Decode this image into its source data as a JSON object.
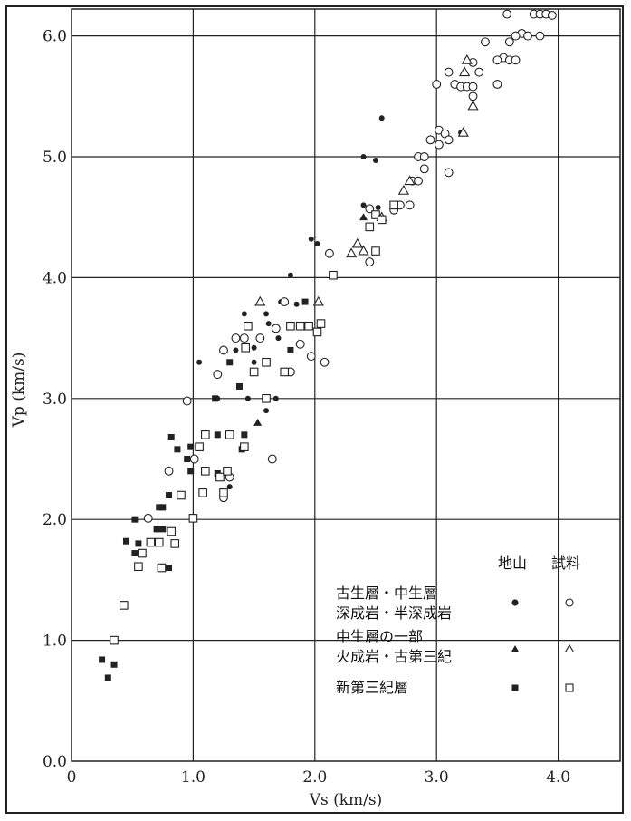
{
  "chart_data": {
    "type": "scatter",
    "xlabel": "Vs (km/s)",
    "ylabel": "Vp (km/s)",
    "xlim": [
      0,
      4.5
    ],
    "ylim": [
      0,
      6.25
    ],
    "x_ticks": [
      "0",
      "1.0",
      "2.0",
      "3.0",
      "4.0"
    ],
    "y_ticks": [
      "0.0",
      "1.0",
      "2.0",
      "3.0",
      "4.0",
      "5.0",
      "6.0"
    ],
    "grid": true,
    "legend": {
      "placement": "bottom-right",
      "col_headers": [
        "地山",
        "試料"
      ],
      "groups": [
        {
          "label_lines": [
            "古生層・中生層",
            "深成岩・半深成岩"
          ],
          "marker": "circle"
        },
        {
          "label_lines": [
            "中生層の一部",
            "火成岩・古第三紀"
          ],
          "marker": "triangle"
        },
        {
          "label_lines": [
            "新第三紀層"
          ],
          "marker": "square"
        }
      ]
    },
    "series": [
      {
        "marker": "circle",
        "fill": "filled",
        "points": [
          [
            2.55,
            5.32
          ],
          [
            2.4,
            5.0
          ],
          [
            2.5,
            4.97
          ],
          [
            2.4,
            4.6
          ],
          [
            2.52,
            4.58
          ],
          [
            1.97,
            4.32
          ],
          [
            2.02,
            4.28
          ],
          [
            1.8,
            4.02
          ],
          [
            1.42,
            3.7
          ],
          [
            1.6,
            3.7
          ],
          [
            1.72,
            3.8
          ],
          [
            1.85,
            3.78
          ],
          [
            1.62,
            3.62
          ],
          [
            1.05,
            3.3
          ],
          [
            1.35,
            3.4
          ],
          [
            1.5,
            3.42
          ],
          [
            1.7,
            3.5
          ],
          [
            1.8,
            3.4
          ],
          [
            1.5,
            3.3
          ],
          [
            1.2,
            3.0
          ],
          [
            1.45,
            3.0
          ],
          [
            1.68,
            3.0
          ],
          [
            1.6,
            2.9
          ],
          [
            1.3,
            2.27
          ],
          [
            3.07,
            5.2
          ],
          [
            3.2,
            5.2
          ]
        ]
      },
      {
        "marker": "circle",
        "fill": "open",
        "points": [
          [
            3.58,
            6.18
          ],
          [
            3.8,
            6.18
          ],
          [
            3.85,
            6.18
          ],
          [
            3.9,
            6.18
          ],
          [
            3.95,
            6.17
          ],
          [
            3.7,
            6.02
          ],
          [
            3.75,
            6.0
          ],
          [
            3.85,
            6.0
          ],
          [
            3.65,
            6.0
          ],
          [
            3.6,
            5.95
          ],
          [
            3.4,
            5.95
          ],
          [
            3.55,
            5.82
          ],
          [
            3.5,
            5.8
          ],
          [
            3.6,
            5.8
          ],
          [
            3.65,
            5.8
          ],
          [
            3.3,
            5.78
          ],
          [
            3.1,
            5.7
          ],
          [
            3.35,
            5.7
          ],
          [
            3.0,
            5.6
          ],
          [
            3.15,
            5.6
          ],
          [
            3.2,
            5.58
          ],
          [
            3.25,
            5.58
          ],
          [
            3.3,
            5.58
          ],
          [
            3.5,
            5.6
          ],
          [
            3.3,
            5.5
          ],
          [
            3.02,
            5.22
          ],
          [
            3.07,
            5.19
          ],
          [
            3.1,
            5.14
          ],
          [
            2.95,
            5.14
          ],
          [
            3.02,
            5.1
          ],
          [
            3.1,
            4.87
          ],
          [
            2.85,
            5.0
          ],
          [
            2.9,
            5.0
          ],
          [
            2.9,
            4.9
          ],
          [
            2.8,
            4.8
          ],
          [
            2.85,
            4.8
          ],
          [
            2.7,
            4.6
          ],
          [
            2.78,
            4.6
          ],
          [
            2.65,
            4.56
          ],
          [
            2.45,
            4.57
          ],
          [
            2.45,
            4.13
          ],
          [
            2.12,
            4.2
          ],
          [
            1.75,
            3.8
          ],
          [
            1.68,
            3.58
          ],
          [
            1.35,
            3.5
          ],
          [
            1.42,
            3.5
          ],
          [
            1.55,
            3.5
          ],
          [
            1.25,
            3.4
          ],
          [
            1.88,
            3.45
          ],
          [
            1.97,
            3.35
          ],
          [
            2.08,
            3.3
          ],
          [
            1.8,
            3.22
          ],
          [
            1.2,
            3.2
          ],
          [
            0.95,
            2.98
          ],
          [
            1.01,
            2.5
          ],
          [
            1.65,
            2.5
          ],
          [
            0.8,
            2.4
          ],
          [
            1.3,
            2.35
          ],
          [
            1.25,
            2.18
          ],
          [
            0.63,
            2.01
          ]
        ]
      },
      {
        "marker": "triangle",
        "fill": "filled",
        "points": [
          [
            2.4,
            4.5
          ],
          [
            1.53,
            2.8
          ]
        ]
      },
      {
        "marker": "triangle",
        "fill": "open",
        "points": [
          [
            3.25,
            5.8
          ],
          [
            3.23,
            5.7
          ],
          [
            3.22,
            5.2
          ],
          [
            3.3,
            5.42
          ],
          [
            2.78,
            4.8
          ],
          [
            2.73,
            4.72
          ],
          [
            2.35,
            4.28
          ],
          [
            2.3,
            4.2
          ],
          [
            2.4,
            4.22
          ],
          [
            2.55,
            4.5
          ],
          [
            1.55,
            3.8
          ],
          [
            2.03,
            3.8
          ]
        ]
      },
      {
        "marker": "square",
        "fill": "filled",
        "points": [
          [
            1.92,
            3.8
          ],
          [
            1.8,
            3.4
          ],
          [
            1.3,
            3.3
          ],
          [
            1.38,
            3.1
          ],
          [
            1.18,
            3.0
          ],
          [
            1.42,
            2.7
          ],
          [
            0.82,
            2.68
          ],
          [
            1.2,
            2.7
          ],
          [
            1.4,
            2.58
          ],
          [
            0.87,
            2.58
          ],
          [
            0.98,
            2.6
          ],
          [
            0.95,
            2.5
          ],
          [
            0.98,
            2.4
          ],
          [
            1.2,
            2.38
          ],
          [
            0.8,
            2.2
          ],
          [
            0.72,
            2.1
          ],
          [
            0.75,
            2.1
          ],
          [
            0.52,
            2.0
          ],
          [
            0.7,
            1.92
          ],
          [
            0.75,
            1.92
          ],
          [
            0.45,
            1.82
          ],
          [
            0.55,
            1.8
          ],
          [
            0.52,
            1.72
          ],
          [
            0.8,
            1.6
          ],
          [
            0.25,
            0.84
          ],
          [
            0.35,
            0.8
          ],
          [
            0.3,
            0.69
          ]
        ]
      },
      {
        "marker": "square",
        "fill": "open",
        "points": [
          [
            2.15,
            4.02
          ],
          [
            2.45,
            4.42
          ],
          [
            2.5,
            4.52
          ],
          [
            2.55,
            4.48
          ],
          [
            2.65,
            4.6
          ],
          [
            2.5,
            4.22
          ],
          [
            1.8,
            3.6
          ],
          [
            1.88,
            3.6
          ],
          [
            1.95,
            3.6
          ],
          [
            2.02,
            3.55
          ],
          [
            2.05,
            3.62
          ],
          [
            1.45,
            3.6
          ],
          [
            1.43,
            3.42
          ],
          [
            1.6,
            3.3
          ],
          [
            1.5,
            3.22
          ],
          [
            1.75,
            3.22
          ],
          [
            1.6,
            3.0
          ],
          [
            1.1,
            2.7
          ],
          [
            1.3,
            2.7
          ],
          [
            1.42,
            2.6
          ],
          [
            1.05,
            2.6
          ],
          [
            1.1,
            2.4
          ],
          [
            1.22,
            2.35
          ],
          [
            1.28,
            2.4
          ],
          [
            1.25,
            2.22
          ],
          [
            1.08,
            2.22
          ],
          [
            0.9,
            2.2
          ],
          [
            1.0,
            2.01
          ],
          [
            0.65,
            1.81
          ],
          [
            0.72,
            1.81
          ],
          [
            0.82,
            1.9
          ],
          [
            0.85,
            1.8
          ],
          [
            0.58,
            1.72
          ],
          [
            0.55,
            1.61
          ],
          [
            0.74,
            1.6
          ],
          [
            0.43,
            1.29
          ],
          [
            0.35,
            1.0
          ]
        ]
      }
    ]
  }
}
